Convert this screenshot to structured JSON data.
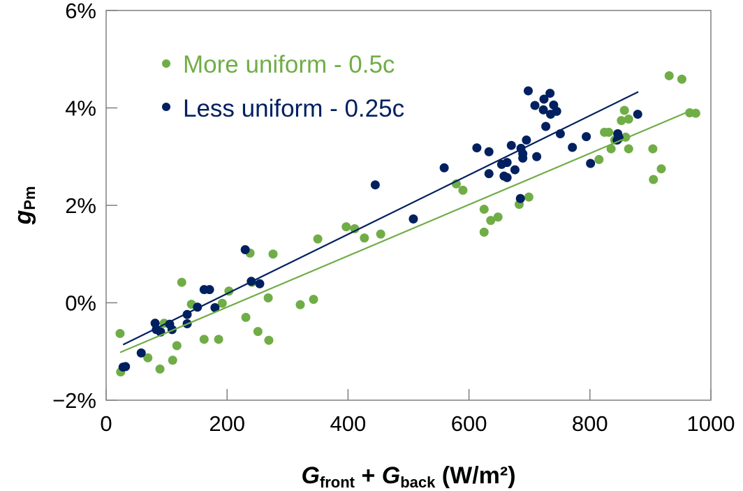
{
  "chart_data": {
    "type": "scatter",
    "xlabel": {
      "main1": "G",
      "sub1": "front",
      "plus": " + ",
      "main2": "G",
      "sub2": "back",
      "unit": " (W/m²)"
    },
    "ylabel": {
      "main": "g",
      "sub": "Pm"
    },
    "xlim": [
      0,
      1000
    ],
    "ylim": [
      -2,
      6
    ],
    "xticks": [
      0,
      200,
      400,
      600,
      800,
      1000
    ],
    "yticks": [
      -2,
      0,
      2,
      4,
      6
    ],
    "xtick_labels": [
      "0",
      "200",
      "400",
      "600",
      "800",
      "1000"
    ],
    "ytick_labels": [
      "−2%",
      "0%",
      "2%",
      "4%",
      "6%"
    ],
    "grid": false,
    "legend_placement": "top-left",
    "series": [
      {
        "name": "More uniform - 0.5c",
        "color": "#70ad47",
        "points": [
          [
            23,
            -0.63
          ],
          [
            24,
            -1.42
          ],
          [
            69,
            -1.13
          ],
          [
            89,
            -1.36
          ],
          [
            96,
            -0.42
          ],
          [
            90,
            -0.59
          ],
          [
            110,
            -1.18
          ],
          [
            117,
            -0.88
          ],
          [
            125,
            0.42
          ],
          [
            141,
            -0.03
          ],
          [
            162,
            -0.75
          ],
          [
            186,
            -0.75
          ],
          [
            192,
            -0.01
          ],
          [
            203,
            0.24
          ],
          [
            231,
            -0.3
          ],
          [
            238,
            1.02
          ],
          [
            241,
            0.42
          ],
          [
            251,
            -0.59
          ],
          [
            268,
            0.1
          ],
          [
            269,
            -0.77
          ],
          [
            276,
            1.0
          ],
          [
            321,
            -0.04
          ],
          [
            343,
            0.07
          ],
          [
            350,
            1.31
          ],
          [
            397,
            1.56
          ],
          [
            411,
            1.52
          ],
          [
            427,
            1.33
          ],
          [
            454,
            1.41
          ],
          [
            579,
            2.44
          ],
          [
            590,
            2.31
          ],
          [
            625,
            1.92
          ],
          [
            625,
            1.45
          ],
          [
            636,
            1.69
          ],
          [
            648,
            1.76
          ],
          [
            683,
            2.02
          ],
          [
            699,
            2.17
          ],
          [
            815,
            2.94
          ],
          [
            824,
            3.5
          ],
          [
            831,
            3.5
          ],
          [
            835,
            3.16
          ],
          [
            841,
            3.34
          ],
          [
            848,
            3.37
          ],
          [
            852,
            3.74
          ],
          [
            857,
            3.95
          ],
          [
            859,
            3.4
          ],
          [
            864,
            3.77
          ],
          [
            864,
            3.16
          ],
          [
            904,
            3.16
          ],
          [
            905,
            2.53
          ],
          [
            918,
            2.75
          ],
          [
            931,
            4.66
          ],
          [
            952,
            4.59
          ],
          [
            965,
            3.9
          ],
          [
            975,
            3.89
          ]
        ],
        "trendline": [
          [
            23,
            -1.02
          ],
          [
            968,
            3.95
          ]
        ]
      },
      {
        "name": "Less uniform - 0.25c",
        "color": "#002060",
        "points": [
          [
            28,
            -1.32
          ],
          [
            32,
            -1.31
          ],
          [
            58,
            -1.03
          ],
          [
            81,
            -0.42
          ],
          [
            83,
            -0.55
          ],
          [
            90,
            -0.6
          ],
          [
            105,
            -0.44
          ],
          [
            109,
            -0.55
          ],
          [
            134,
            -0.43
          ],
          [
            134,
            -0.24
          ],
          [
            151,
            -0.09
          ],
          [
            162,
            0.27
          ],
          [
            171,
            0.27
          ],
          [
            180,
            -0.1
          ],
          [
            230,
            1.09
          ],
          [
            240,
            0.44
          ],
          [
            254,
            0.39
          ],
          [
            445,
            2.42
          ],
          [
            508,
            1.72
          ],
          [
            559,
            2.77
          ],
          [
            613,
            3.18
          ],
          [
            633,
            3.1
          ],
          [
            633,
            2.65
          ],
          [
            654,
            2.84
          ],
          [
            658,
            2.6
          ],
          [
            663,
            2.57
          ],
          [
            663,
            2.88
          ],
          [
            670,
            3.23
          ],
          [
            676,
            2.73
          ],
          [
            686,
            3.17
          ],
          [
            685,
            2.14
          ],
          [
            689,
            2.97
          ],
          [
            689,
            3.06
          ],
          [
            695,
            3.34
          ],
          [
            698,
            4.35
          ],
          [
            709,
            4.05
          ],
          [
            712,
            3.0
          ],
          [
            723,
            3.96
          ],
          [
            724,
            4.18
          ],
          [
            727,
            3.62
          ],
          [
            735,
            3.87
          ],
          [
            734,
            4.3
          ],
          [
            740,
            4.06
          ],
          [
            745,
            3.93
          ],
          [
            751,
            3.47
          ],
          [
            771,
            3.19
          ],
          [
            794,
            3.41
          ],
          [
            801,
            2.86
          ],
          [
            845,
            3.34
          ],
          [
            846,
            3.47
          ],
          [
            848,
            3.39
          ],
          [
            879,
            3.87
          ]
        ],
        "trendline": [
          [
            28,
            -0.86
          ],
          [
            880,
            4.33
          ]
        ]
      }
    ]
  }
}
